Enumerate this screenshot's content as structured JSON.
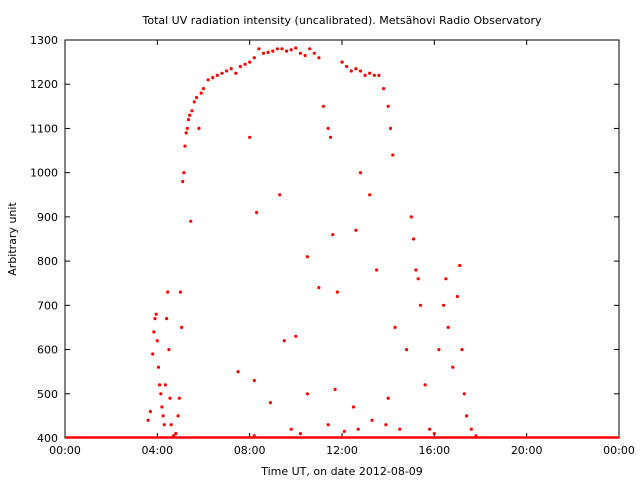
{
  "chart_data": {
    "type": "scatter",
    "title": "Total UV radiation intensity (uncalibrated). Metsähovi Radio Observatory",
    "xlabel": "Time UT, on date 2012-08-09",
    "ylabel": "Arbitrary unit",
    "xlim": [
      0,
      24
    ],
    "ylim": [
      400,
      1300
    ],
    "x_tick_labels": [
      "00:00",
      "04:00",
      "08:00",
      "12:00",
      "16:00",
      "20:00",
      "00:00"
    ],
    "y_tick_labels": [
      "400",
      "500",
      "600",
      "700",
      "800",
      "900",
      "1000",
      "1100",
      "1200",
      "1300"
    ],
    "marker_color": "#ff0000",
    "grid": false,
    "series": [
      {
        "points": [
          [
            3.6,
            440
          ],
          [
            3.7,
            460
          ],
          [
            3.8,
            590
          ],
          [
            3.85,
            640
          ],
          [
            3.9,
            670
          ],
          [
            3.95,
            680
          ],
          [
            4.0,
            620
          ],
          [
            4.05,
            560
          ],
          [
            4.1,
            520
          ],
          [
            4.15,
            500
          ],
          [
            4.2,
            470
          ],
          [
            4.25,
            450
          ],
          [
            4.3,
            430
          ],
          [
            4.35,
            520
          ],
          [
            4.4,
            670
          ],
          [
            4.45,
            730
          ],
          [
            4.5,
            600
          ],
          [
            4.55,
            490
          ],
          [
            4.6,
            430
          ],
          [
            4.7,
            405
          ],
          [
            4.8,
            410
          ],
          [
            4.9,
            450
          ],
          [
            4.95,
            490
          ],
          [
            5.0,
            730
          ],
          [
            5.05,
            650
          ],
          [
            5.1,
            980
          ],
          [
            5.15,
            1000
          ],
          [
            5.2,
            1060
          ],
          [
            5.25,
            1090
          ],
          [
            5.3,
            1100
          ],
          [
            5.35,
            1120
          ],
          [
            5.4,
            1130
          ],
          [
            5.45,
            890
          ],
          [
            5.5,
            1140
          ],
          [
            5.6,
            1160
          ],
          [
            5.7,
            1170
          ],
          [
            5.8,
            1100
          ],
          [
            5.9,
            1180
          ],
          [
            6.0,
            1190
          ],
          [
            6.2,
            1210
          ],
          [
            6.4,
            1215
          ],
          [
            6.6,
            1220
          ],
          [
            6.8,
            1225
          ],
          [
            7.0,
            1230
          ],
          [
            7.2,
            1235
          ],
          [
            7.4,
            1225
          ],
          [
            7.6,
            1240
          ],
          [
            7.8,
            1245
          ],
          [
            8.0,
            1250
          ],
          [
            8.2,
            1260
          ],
          [
            8.4,
            1280
          ],
          [
            8.6,
            1270
          ],
          [
            8.8,
            1272
          ],
          [
            9.0,
            1275
          ],
          [
            9.2,
            1280
          ],
          [
            9.4,
            1280
          ],
          [
            9.6,
            1275
          ],
          [
            9.8,
            1278
          ],
          [
            10.0,
            1282
          ],
          [
            10.2,
            1270
          ],
          [
            10.4,
            1265
          ],
          [
            10.6,
            1280
          ],
          [
            10.8,
            1270
          ],
          [
            11.0,
            1260
          ],
          [
            11.2,
            1150
          ],
          [
            11.4,
            1100
          ],
          [
            11.5,
            1080
          ],
          [
            11.6,
            860
          ],
          [
            11.8,
            730
          ],
          [
            12.0,
            1250
          ],
          [
            12.2,
            1240
          ],
          [
            12.4,
            1230
          ],
          [
            12.6,
            1235
          ],
          [
            12.8,
            1230
          ],
          [
            13.0,
            1220
          ],
          [
            13.2,
            1225
          ],
          [
            13.4,
            1220
          ],
          [
            13.6,
            1220
          ],
          [
            13.8,
            1190
          ],
          [
            14.0,
            1150
          ],
          [
            14.1,
            1100
          ],
          [
            14.2,
            1040
          ],
          [
            14.3,
            650
          ],
          [
            14.5,
            420
          ],
          [
            14.8,
            600
          ],
          [
            15.0,
            900
          ],
          [
            15.1,
            850
          ],
          [
            15.2,
            780
          ],
          [
            15.3,
            760
          ],
          [
            15.4,
            700
          ],
          [
            15.6,
            520
          ],
          [
            15.8,
            420
          ],
          [
            16.0,
            410
          ],
          [
            16.2,
            600
          ],
          [
            16.4,
            700
          ],
          [
            16.5,
            760
          ],
          [
            16.6,
            650
          ],
          [
            16.8,
            560
          ],
          [
            17.0,
            720
          ],
          [
            17.1,
            790
          ],
          [
            17.2,
            600
          ],
          [
            17.3,
            500
          ],
          [
            17.4,
            450
          ],
          [
            17.6,
            420
          ],
          [
            17.8,
            405
          ],
          [
            8.0,
            1080
          ],
          [
            8.3,
            910
          ],
          [
            9.3,
            950
          ],
          [
            10.5,
            810
          ],
          [
            11.0,
            740
          ],
          [
            12.8,
            1000
          ],
          [
            13.2,
            950
          ],
          [
            13.5,
            780
          ],
          [
            12.6,
            870
          ],
          [
            10.0,
            630
          ],
          [
            9.5,
            620
          ],
          [
            7.5,
            550
          ],
          [
            8.2,
            530
          ],
          [
            8.9,
            480
          ],
          [
            10.5,
            500
          ],
          [
            11.7,
            510
          ],
          [
            12.5,
            470
          ],
          [
            13.3,
            440
          ],
          [
            14.0,
            490
          ],
          [
            9.8,
            420
          ],
          [
            11.4,
            430
          ],
          [
            12.1,
            415
          ],
          [
            13.9,
            430
          ],
          [
            8.2,
            405
          ],
          [
            10.2,
            410
          ],
          [
            12.7,
            420
          ]
        ]
      }
    ]
  }
}
